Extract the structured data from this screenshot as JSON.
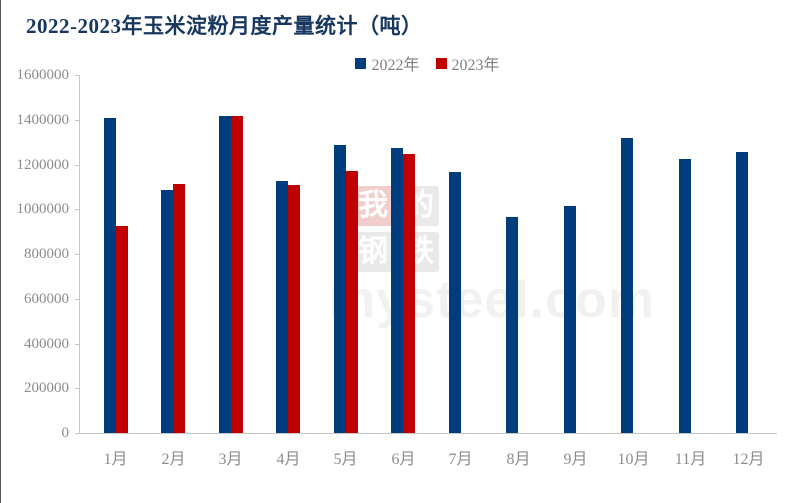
{
  "watermark": {
    "chars": [
      "我",
      "的",
      "钢",
      "铁"
    ],
    "text": "mysteel.com"
  },
  "colors": {
    "title": "#17375e",
    "axis_text": "#8c8c8c",
    "axis_line": "#c6c6c6",
    "series_2022": "#003d7c",
    "series_2023": "#c00000"
  },
  "chart_data": {
    "type": "bar",
    "title": "2022-2023年玉米淀粉月度产量统计（吨）",
    "categories": [
      "1月",
      "2月",
      "3月",
      "4月",
      "5月",
      "6月",
      "7月",
      "8月",
      "9月",
      "10月",
      "11月",
      "12月"
    ],
    "series": [
      {
        "name": "2022年",
        "color": "#003d7c",
        "values": [
          1410000,
          1085000,
          1415000,
          1125000,
          1285000,
          1275000,
          1165000,
          965000,
          1015000,
          1320000,
          1225000,
          1255000
        ]
      },
      {
        "name": "2023年",
        "color": "#c00000",
        "values": [
          925000,
          1115000,
          1415000,
          1110000,
          1170000,
          1245000,
          null,
          null,
          null,
          null,
          null,
          null
        ]
      }
    ],
    "xlabel": "",
    "ylabel": "",
    "ylim": [
      0,
      1600000
    ],
    "ytick_step": 200000,
    "grid": false,
    "legend_position": "top-center"
  }
}
